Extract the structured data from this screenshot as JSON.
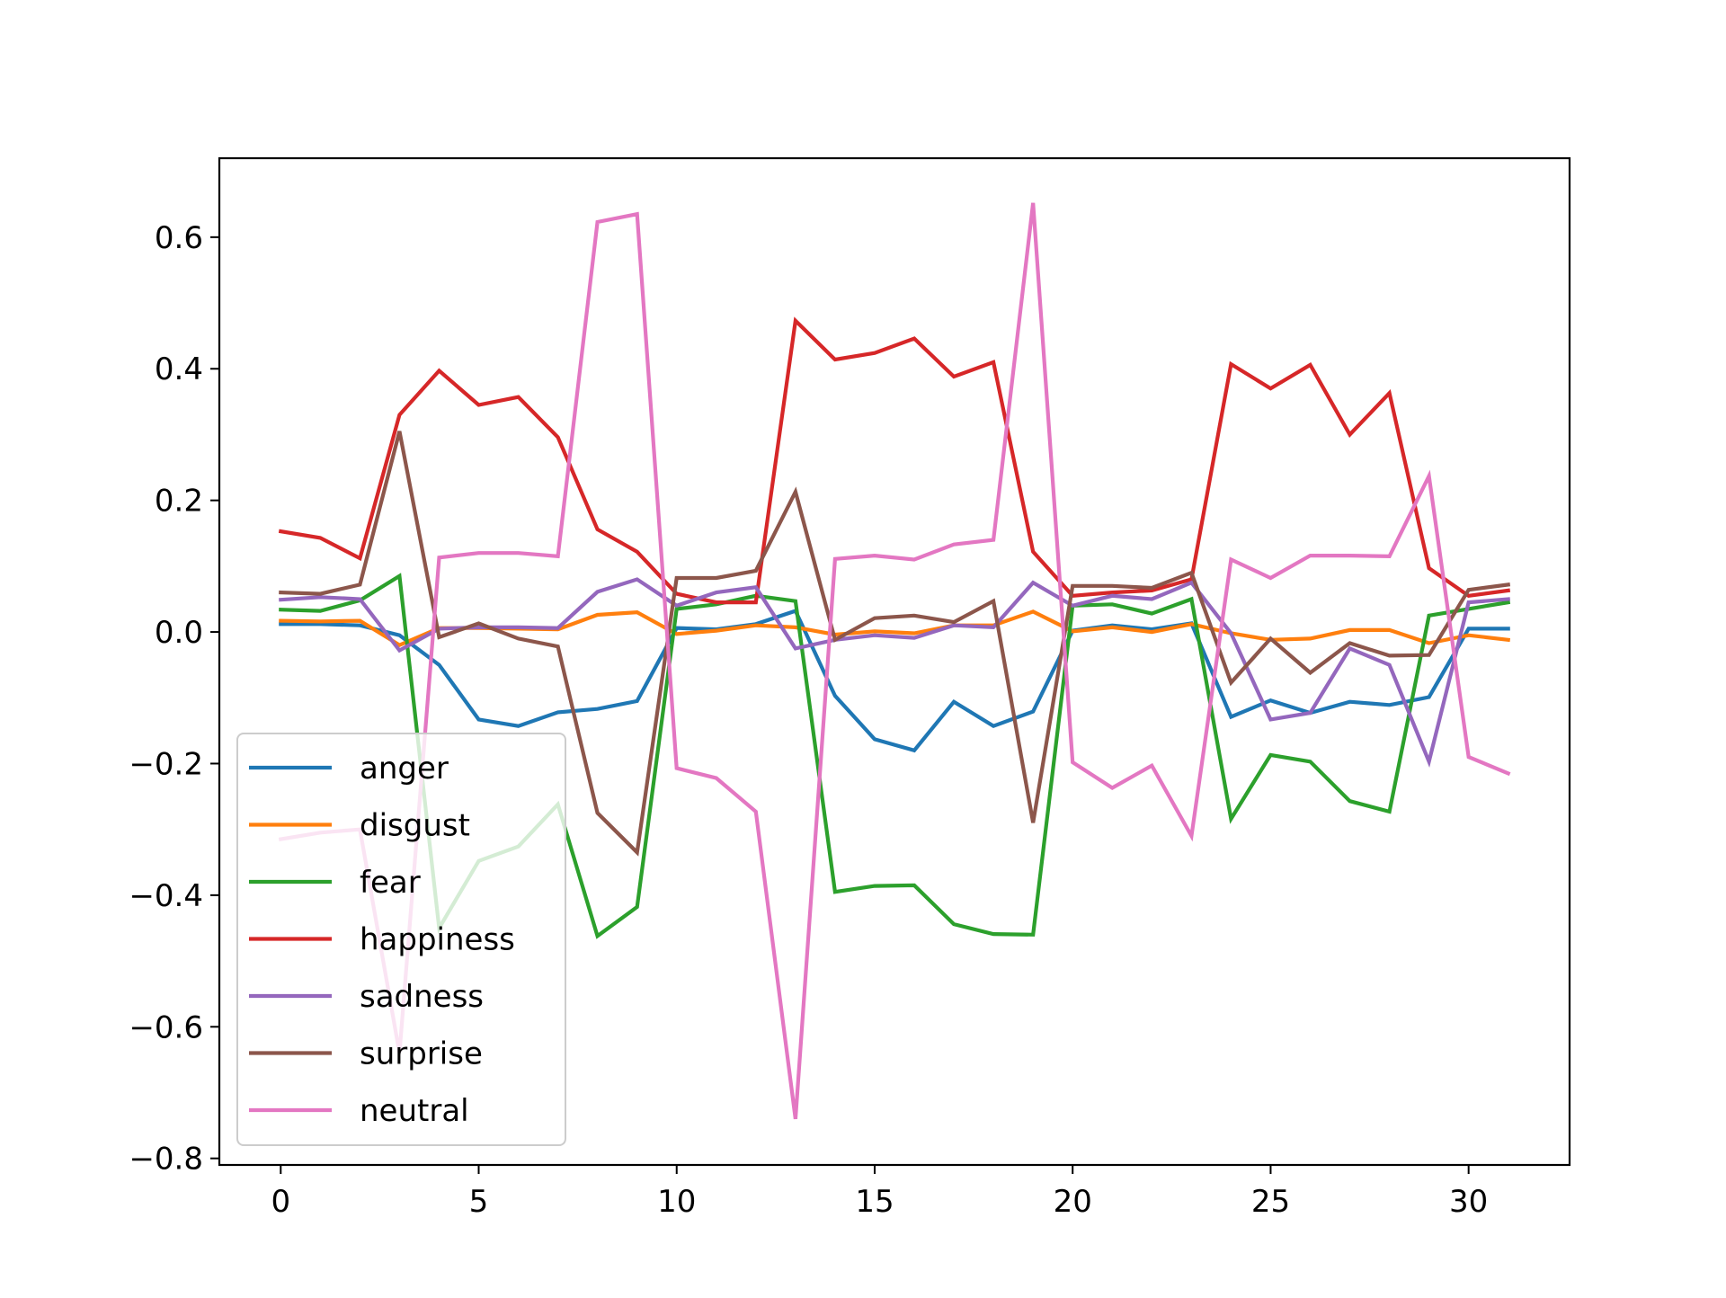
{
  "chart_data": {
    "type": "line",
    "title": "",
    "xlabel": "",
    "ylabel": "",
    "xlim": [
      -1.55,
      32.55
    ],
    "ylim": [
      -0.81,
      0.72
    ],
    "xticks": [
      0,
      5,
      10,
      15,
      20,
      25,
      30
    ],
    "yticks": [
      -0.8,
      -0.6,
      -0.4,
      -0.2,
      0.0,
      0.2,
      0.4,
      0.6
    ],
    "xtick_labels": [
      "0",
      "5",
      "10",
      "15",
      "20",
      "25",
      "30"
    ],
    "ytick_labels": [
      "−0.8",
      "−0.6",
      "−0.4",
      "−0.2",
      "0.0",
      "0.2",
      "0.4",
      "0.6"
    ],
    "legend_position": "lower-left",
    "grid": false,
    "x": [
      0,
      1,
      2,
      3,
      4,
      5,
      6,
      7,
      8,
      9,
      10,
      11,
      12,
      13,
      14,
      15,
      16,
      17,
      18,
      19,
      20,
      21,
      22,
      23,
      24,
      25,
      26,
      27,
      28,
      29,
      30,
      31
    ],
    "series": [
      {
        "name": "anger",
        "color": "#1f77b4",
        "values": [
          0.012,
          0.012,
          0.01,
          -0.005,
          -0.05,
          -0.133,
          -0.143,
          -0.122,
          -0.117,
          -0.105,
          0.006,
          0.004,
          0.012,
          0.032,
          -0.097,
          -0.163,
          -0.18,
          -0.106,
          -0.143,
          -0.121,
          0.002,
          0.01,
          0.004,
          0.013,
          -0.129,
          -0.104,
          -0.123,
          -0.106,
          -0.111,
          -0.099,
          0.005,
          0.005
        ]
      },
      {
        "name": "disgust",
        "color": "#ff7f0e",
        "values": [
          0.017,
          0.016,
          0.017,
          -0.02,
          0.006,
          0.006,
          0.005,
          0.004,
          0.026,
          0.03,
          -0.003,
          0.002,
          0.01,
          0.007,
          -0.004,
          0.001,
          -0.002,
          0.01,
          0.01,
          0.031,
          0.001,
          0.007,
          0.0,
          0.012,
          -0.002,
          -0.012,
          -0.01,
          0.003,
          0.003,
          -0.017,
          -0.005,
          -0.012
        ]
      },
      {
        "name": "fear",
        "color": "#2ca02c",
        "values": [
          0.034,
          0.032,
          0.048,
          0.085,
          -0.45,
          -0.348,
          -0.326,
          -0.262,
          -0.462,
          -0.418,
          0.035,
          0.042,
          0.055,
          0.047,
          -0.395,
          -0.386,
          -0.385,
          -0.444,
          -0.459,
          -0.46,
          0.04,
          0.042,
          0.028,
          0.05,
          -0.284,
          -0.187,
          -0.197,
          -0.257,
          -0.273,
          0.025,
          0.035,
          0.045
        ]
      },
      {
        "name": "happiness",
        "color": "#d62728",
        "values": [
          0.153,
          0.143,
          0.112,
          0.33,
          0.397,
          0.345,
          0.357,
          0.296,
          0.156,
          0.122,
          0.058,
          0.045,
          0.045,
          0.473,
          0.414,
          0.424,
          0.446,
          0.388,
          0.41,
          0.122,
          0.055,
          0.06,
          0.063,
          0.08,
          0.407,
          0.37,
          0.406,
          0.3,
          0.363,
          0.097,
          0.055,
          0.063
        ]
      },
      {
        "name": "sadness",
        "color": "#9467bd",
        "values": [
          0.049,
          0.053,
          0.05,
          -0.028,
          0.005,
          0.007,
          0.007,
          0.006,
          0.061,
          0.08,
          0.04,
          0.06,
          0.068,
          -0.025,
          -0.012,
          -0.005,
          -0.009,
          0.01,
          0.007,
          0.075,
          0.04,
          0.055,
          0.05,
          0.075,
          -0.002,
          -0.133,
          -0.123,
          -0.025,
          -0.05,
          -0.197,
          0.045,
          0.05
        ]
      },
      {
        "name": "surprise",
        "color": "#8c564b",
        "values": [
          0.06,
          0.058,
          0.072,
          0.305,
          -0.008,
          0.013,
          -0.01,
          -0.022,
          -0.275,
          -0.335,
          0.082,
          0.082,
          0.093,
          0.213,
          -0.012,
          0.021,
          0.025,
          0.015,
          0.047,
          -0.29,
          0.07,
          0.07,
          0.067,
          0.09,
          -0.077,
          -0.01,
          -0.062,
          -0.017,
          -0.036,
          -0.035,
          0.064,
          0.072
        ]
      },
      {
        "name": "neutral",
        "color": "#e377c2",
        "values": [
          -0.315,
          -0.305,
          -0.3,
          -0.64,
          0.113,
          0.12,
          0.12,
          0.115,
          0.623,
          0.635,
          -0.207,
          -0.222,
          -0.273,
          -0.74,
          0.111,
          0.116,
          0.11,
          0.133,
          0.14,
          0.652,
          -0.198,
          -0.237,
          -0.203,
          -0.31,
          0.11,
          0.082,
          0.116,
          0.116,
          0.115,
          0.237,
          -0.19,
          -0.215
        ]
      }
    ]
  }
}
